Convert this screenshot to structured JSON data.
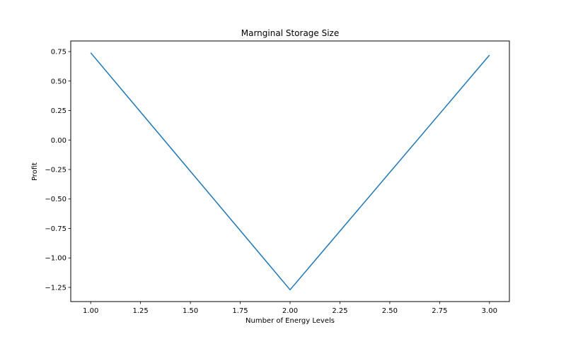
{
  "chart_data": {
    "type": "line",
    "title": "Marnginal Storage Size",
    "xlabel": "Number of Energy Levels",
    "ylabel": "Profit",
    "x": [
      1.0,
      2.0,
      3.0
    ],
    "series": [
      {
        "values": [
          0.74,
          -1.27,
          0.72
        ],
        "color": "#1f77b4"
      }
    ],
    "xlim": [
      0.9,
      3.1
    ],
    "ylim": [
      -1.37,
      0.84
    ],
    "xticks": [
      1.0,
      1.25,
      1.5,
      1.75,
      2.0,
      2.25,
      2.5,
      2.75,
      3.0
    ],
    "xtick_labels": [
      "1.00",
      "1.25",
      "1.50",
      "1.75",
      "2.00",
      "2.25",
      "2.50",
      "2.75",
      "3.00"
    ],
    "yticks": [
      0.75,
      0.5,
      0.25,
      0.0,
      -0.25,
      -0.5,
      -0.75,
      -1.0,
      -1.25
    ],
    "ytick_labels": [
      "0.75",
      "0.50",
      "0.25",
      "0.00",
      "−0.25",
      "−0.50",
      "−0.75",
      "−1.00",
      "−1.25"
    ],
    "grid": false,
    "legend": "none"
  }
}
